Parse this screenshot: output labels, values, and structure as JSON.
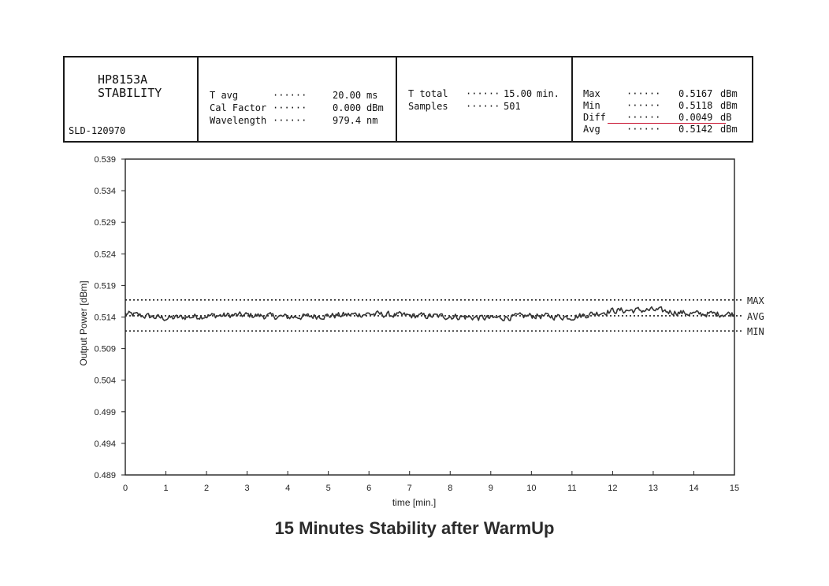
{
  "header": {
    "instrument_line1": "HP8153A",
    "instrument_line2": "STABILITY",
    "serial": "SLD-120970",
    "measurement": [
      {
        "label": "T avg",
        "value": "20.00",
        "unit": "ms"
      },
      {
        "label": "Cal Factor",
        "value": "0.000",
        "unit": "dBm"
      },
      {
        "label": "Wavelength",
        "value": "979.4",
        "unit": "nm"
      }
    ],
    "timing": [
      {
        "label": "T total",
        "value": "15.00",
        "unit": "min."
      },
      {
        "label": "Samples",
        "value": "501",
        "unit": ""
      }
    ],
    "stats": [
      {
        "label": "Max",
        "value": "0.5167",
        "unit": "dBm"
      },
      {
        "label": "Min",
        "value": "0.5118",
        "unit": "dBm"
      },
      {
        "label": "Diff",
        "value": "0.0049",
        "unit": "dB"
      },
      {
        "label": "Avg",
        "value": "0.5142",
        "unit": "dBm"
      }
    ],
    "dots": "······"
  },
  "chart_data": {
    "type": "line",
    "title": "15 Minutes Stability after WarmUp",
    "xlabel": "time [min.]",
    "ylabel": "Output Power [dBm]",
    "xlim": [
      0,
      15
    ],
    "ylim": [
      0.489,
      0.539
    ],
    "x_ticks": [
      0,
      1,
      2,
      3,
      4,
      5,
      6,
      7,
      8,
      9,
      10,
      11,
      12,
      13,
      14,
      15
    ],
    "y_ticks": [
      "0.539",
      "0.534",
      "0.529",
      "0.524",
      "0.519",
      "0.514",
      "0.509",
      "0.504",
      "0.499",
      "0.494",
      "0.489"
    ],
    "reference_lines": [
      {
        "name": "MAX",
        "value": 0.5167
      },
      {
        "name": "AVG",
        "value": 0.5142
      },
      {
        "name": "MIN",
        "value": 0.5118
      }
    ],
    "series": [
      {
        "samples": 501,
        "x_start": 0,
        "x_end": 15,
        "baseline": [
          [
            0,
            0.5145
          ],
          [
            1,
            0.5138
          ],
          [
            2,
            0.5142
          ],
          [
            3,
            0.5143
          ],
          [
            4,
            0.514
          ],
          [
            5,
            0.5142
          ],
          [
            6,
            0.5145
          ],
          [
            7,
            0.5142
          ],
          [
            8,
            0.5141
          ],
          [
            9,
            0.5138
          ],
          [
            10,
            0.5142
          ],
          [
            11,
            0.514
          ],
          [
            12,
            0.515
          ],
          [
            13,
            0.5151
          ],
          [
            14,
            0.5145
          ],
          [
            15,
            0.5145
          ]
        ],
        "noise_amplitude": 0.0007,
        "min_value": 0.5118,
        "max_value": 0.5167
      }
    ],
    "grid": false
  }
}
